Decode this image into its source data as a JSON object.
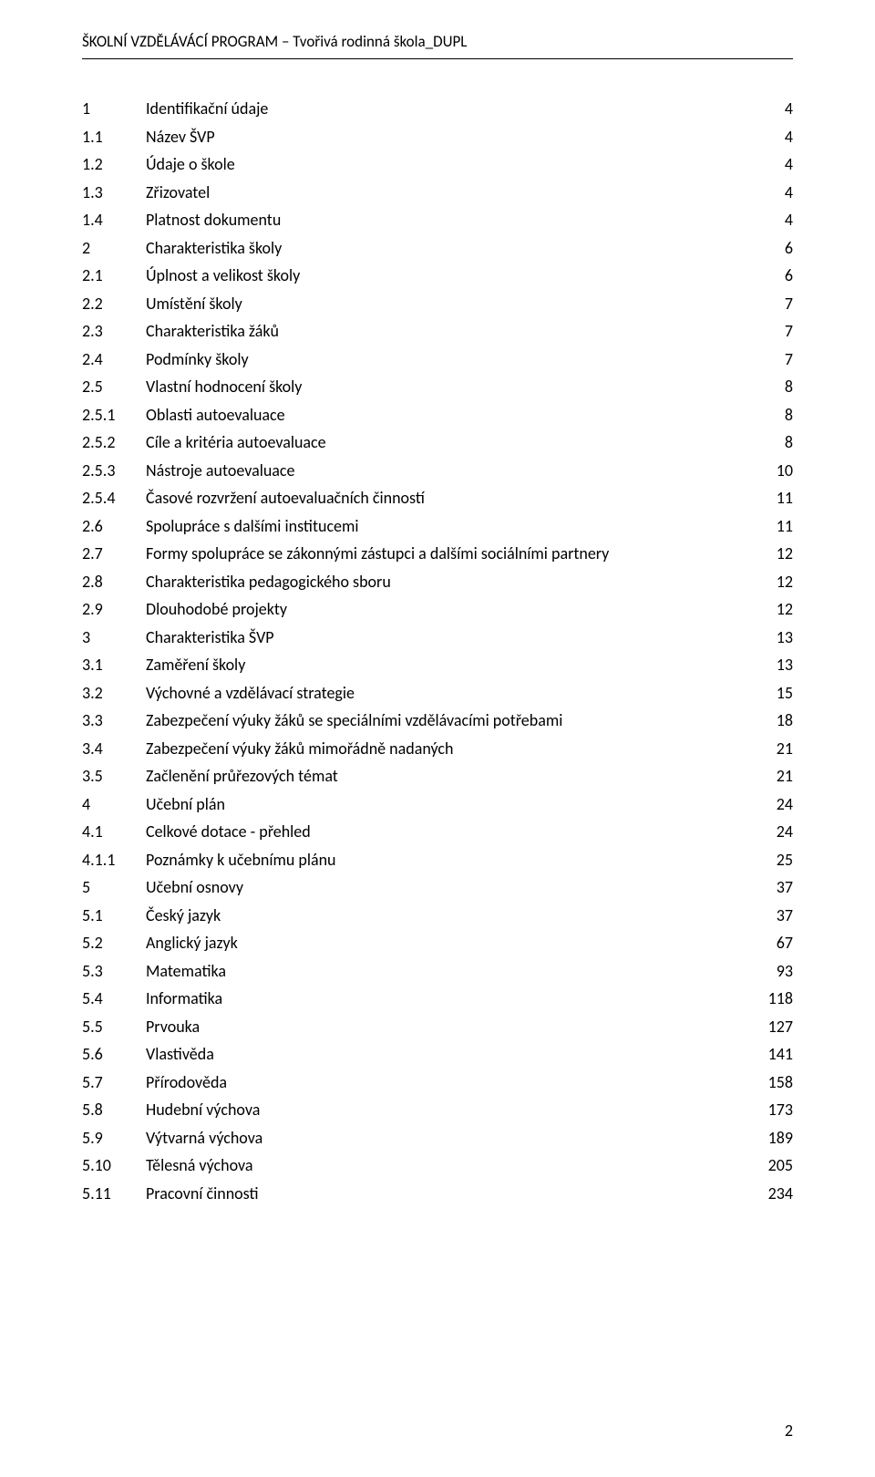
{
  "header": "ŠKOLNÍ VZDĚLÁVÁCÍ PROGRAM – Tvořivá rodinná škola_DUPL",
  "page_number": "2",
  "toc": [
    {
      "num": "1",
      "title": "Identifikační údaje",
      "page": "4"
    },
    {
      "num": "1.1",
      "title": "Název ŠVP",
      "page": "4"
    },
    {
      "num": "1.2",
      "title": "Údaje o škole",
      "page": "4"
    },
    {
      "num": "1.3",
      "title": "Zřizovatel",
      "page": "4"
    },
    {
      "num": "1.4",
      "title": "Platnost dokumentu",
      "page": "4"
    },
    {
      "num": "2",
      "title": "Charakteristika školy",
      "page": "6"
    },
    {
      "num": "2.1",
      "title": "Úplnost a velikost školy",
      "page": "6"
    },
    {
      "num": "2.2",
      "title": "Umístění školy",
      "page": "7"
    },
    {
      "num": "2.3",
      "title": "Charakteristika žáků",
      "page": "7"
    },
    {
      "num": "2.4",
      "title": "Podmínky školy",
      "page": "7"
    },
    {
      "num": "2.5",
      "title": "Vlastní hodnocení školy",
      "page": "8"
    },
    {
      "num": "2.5.1",
      "title": "Oblasti autoevaluace",
      "page": "8"
    },
    {
      "num": "2.5.2",
      "title": "Cíle a kritéria autoevaluace",
      "page": "8"
    },
    {
      "num": "2.5.3",
      "title": "Nástroje autoevaluace",
      "page": "10"
    },
    {
      "num": "2.5.4",
      "title": "Časové rozvržení autoevaluačních činností",
      "page": "11"
    },
    {
      "num": "2.6",
      "title": "Spolupráce s dalšími institucemi",
      "page": "11"
    },
    {
      "num": "2.7",
      "title": "Formy spolupráce se zákonnými zástupci a dalšími sociálními partnery",
      "page": "12"
    },
    {
      "num": "2.8",
      "title": "Charakteristika pedagogického sboru",
      "page": "12"
    },
    {
      "num": "2.9",
      "title": "Dlouhodobé projekty",
      "page": "12"
    },
    {
      "num": "3",
      "title": "Charakteristika ŠVP",
      "page": "13"
    },
    {
      "num": "3.1",
      "title": "Zaměření školy",
      "page": "13"
    },
    {
      "num": "3.2",
      "title": "Výchovné a vzdělávací strategie",
      "page": "15"
    },
    {
      "num": "3.3",
      "title": "Zabezpečení výuky žáků se speciálními vzdělávacími potřebami",
      "page": "18"
    },
    {
      "num": "3.4",
      "title": "Zabezpečení výuky žáků mimořádně nadaných",
      "page": "21"
    },
    {
      "num": "3.5",
      "title": "Začlenění průřezových témat",
      "page": "21"
    },
    {
      "num": "4",
      "title": "Učební plán",
      "page": "24"
    },
    {
      "num": "4.1",
      "title": "Celkové dotace - přehled",
      "page": "24"
    },
    {
      "num": "4.1.1",
      "title": "Poznámky k učebnímu plánu",
      "page": "25"
    },
    {
      "num": "5",
      "title": "Učební osnovy",
      "page": "37"
    },
    {
      "num": "5.1",
      "title": "Český jazyk",
      "page": "37"
    },
    {
      "num": "5.2",
      "title": "Anglický jazyk",
      "page": "67"
    },
    {
      "num": "5.3",
      "title": "Matematika",
      "page": "93"
    },
    {
      "num": "5.4",
      "title": "Informatika",
      "page": "118"
    },
    {
      "num": "5.5",
      "title": "Prvouka",
      "page": "127"
    },
    {
      "num": "5.6",
      "title": "Vlastivěda",
      "page": "141"
    },
    {
      "num": "5.7",
      "title": "Přírodověda",
      "page": "158"
    },
    {
      "num": "5.8",
      "title": "Hudební výchova",
      "page": "173"
    },
    {
      "num": "5.9",
      "title": "Výtvarná výchova",
      "page": "189"
    },
    {
      "num": "5.10",
      "title": "Tělesná výchova",
      "page": "205"
    },
    {
      "num": "5.11",
      "title": "Pracovní činnosti",
      "page": "234"
    }
  ]
}
